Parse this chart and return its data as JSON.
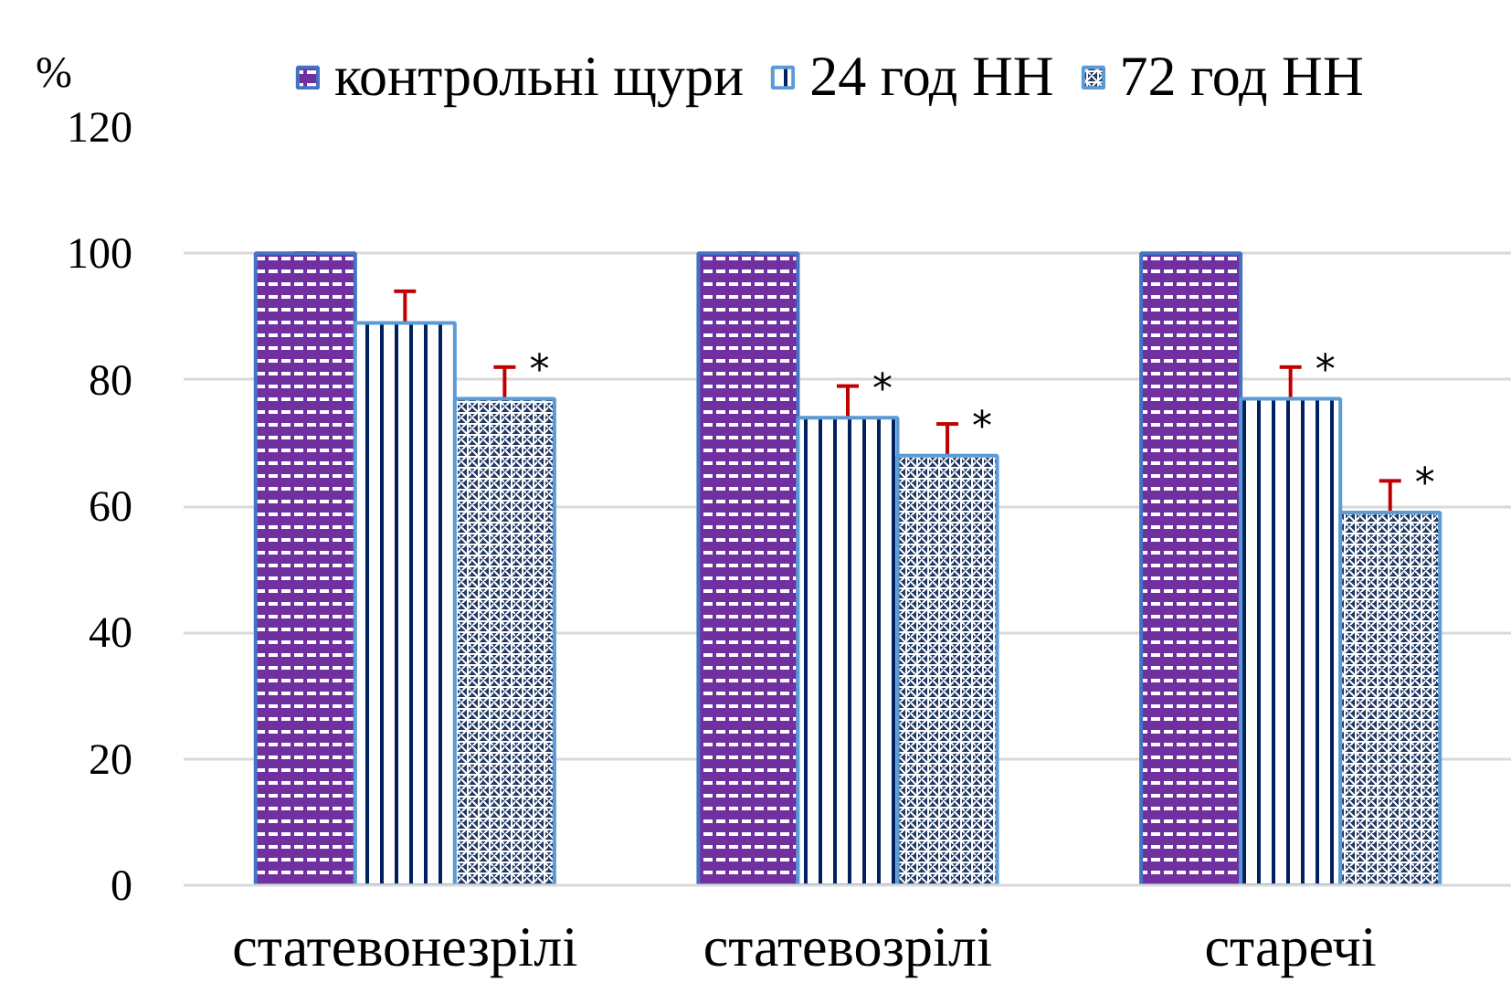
{
  "chart_data": {
    "type": "bar",
    "ylabel": "%",
    "categories": [
      "статевонезрілі",
      "статевозрілі",
      "старечі"
    ],
    "series": [
      {
        "name": "контрольні щури",
        "color": "#7030a0",
        "values": [
          100,
          100,
          100
        ],
        "errors": [
          0,
          0,
          0
        ]
      },
      {
        "name": "24 год НН",
        "color": "#002060",
        "values": [
          89,
          74,
          77
        ],
        "errors": [
          5,
          5,
          5
        ],
        "value_labels": [
          null,
          "*",
          "*"
        ]
      },
      {
        "name": "72 год НН",
        "color": "#203864",
        "values": [
          77,
          68,
          59
        ],
        "errors": [
          5,
          5,
          5
        ],
        "value_labels": [
          "*",
          "*",
          "*"
        ]
      }
    ],
    "ylim": [
      0,
      120
    ],
    "yticks": [
      0,
      20,
      40,
      60,
      80,
      100,
      120
    ],
    "grid": "y",
    "legend": "top"
  }
}
